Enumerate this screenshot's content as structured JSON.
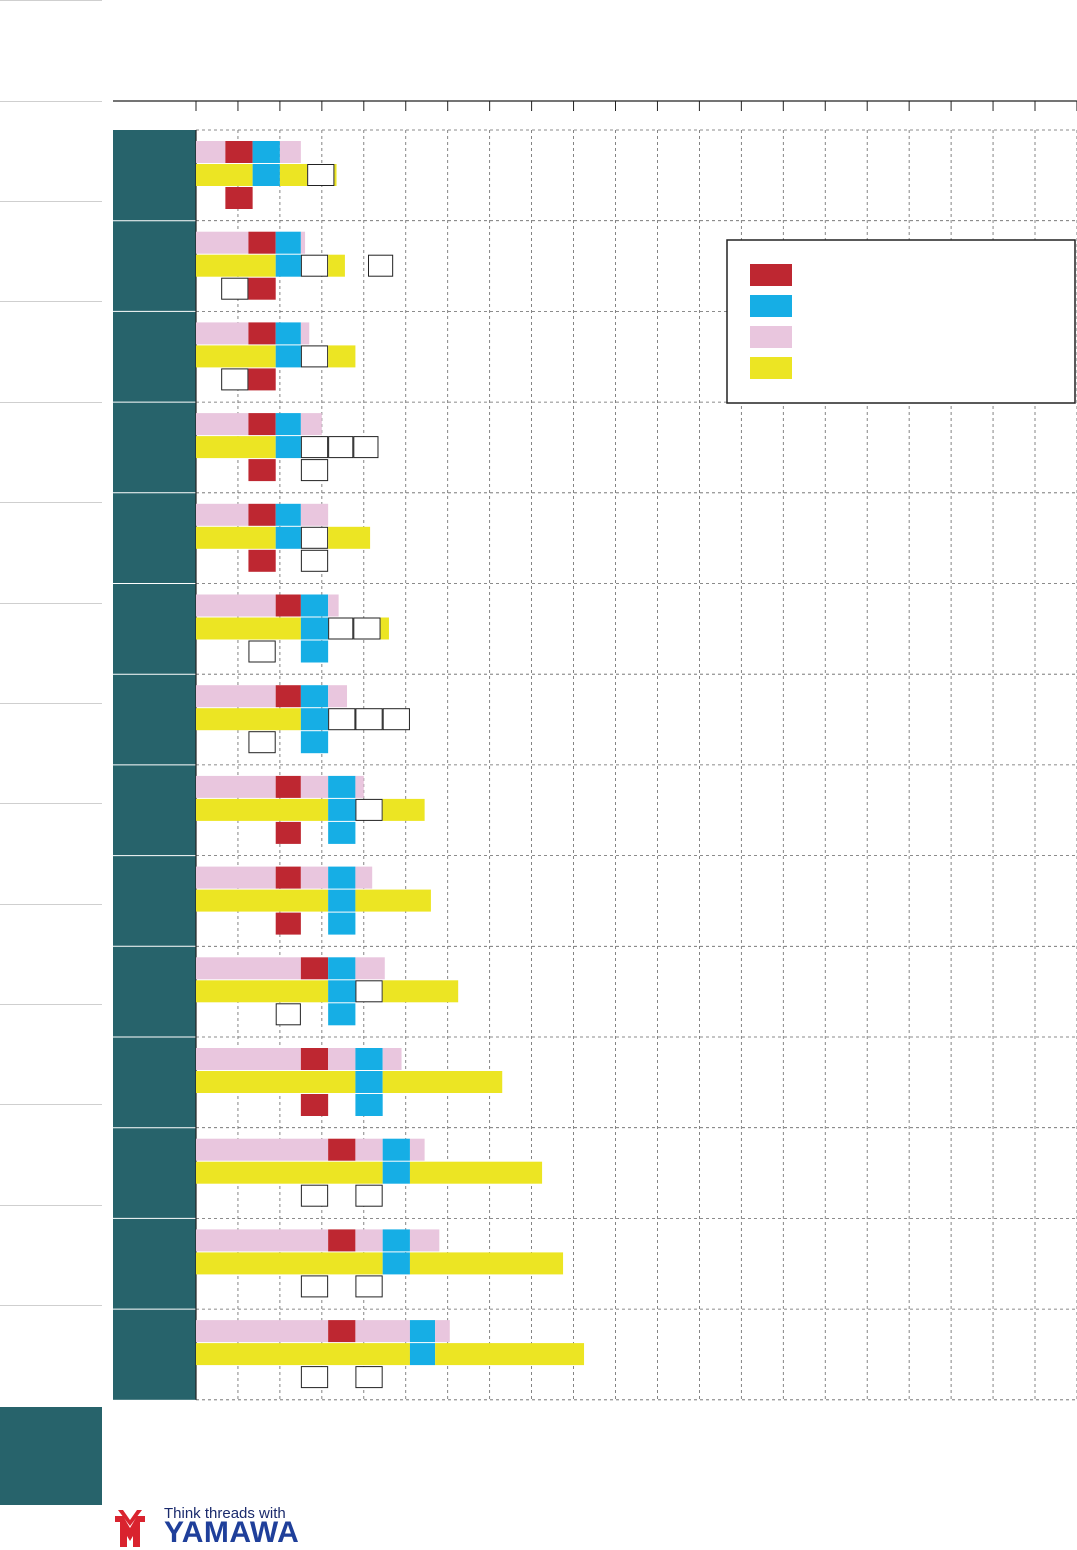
{
  "chart_data": {
    "type": "bar",
    "grid": "dashed",
    "legend_position": "top-right",
    "x_columns": 21,
    "colors": {
      "red": "#be2731",
      "blue": "#16aee5",
      "pink": "#e9c6de",
      "yellow": "#ece523",
      "row_header": "#27636b"
    },
    "legend": [
      {
        "color": "red",
        "label": ""
      },
      {
        "color": "blue",
        "label": ""
      },
      {
        "color": "pink",
        "label": ""
      },
      {
        "color": "yellow",
        "label": ""
      }
    ],
    "rows": [
      {
        "top": [
          [
            "pink",
            0,
            0.7
          ],
          [
            "red",
            0.7,
            1.35
          ],
          [
            "blue",
            1.35,
            2
          ],
          [
            "pink",
            2,
            2.5
          ]
        ],
        "middle": [
          [
            "yellow",
            0,
            1.35
          ],
          [
            "blue",
            1.35,
            2
          ],
          [
            "yellow",
            2,
            2.65
          ],
          [
            "box",
            2.65,
            3.3
          ],
          [
            "yellow",
            3.3,
            3.35
          ]
        ],
        "bottom": [
          [
            "red",
            0.7,
            1.35
          ]
        ]
      },
      {
        "top": [
          [
            "pink",
            0,
            1.25
          ],
          [
            "red",
            1.25,
            1.9
          ],
          [
            "blue",
            1.9,
            2.5
          ],
          [
            "pink",
            2.5,
            2.6
          ]
        ],
        "middle": [
          [
            "yellow",
            0,
            1.9
          ],
          [
            "blue",
            1.9,
            2.5
          ],
          [
            "box",
            2.5,
            3.15
          ],
          [
            "yellow",
            3.15,
            3.55
          ],
          [
            "box",
            4.1,
            4.7
          ]
        ],
        "bottom": [
          [
            "box",
            0.6,
            1.25
          ],
          [
            "red",
            1.25,
            1.9
          ]
        ]
      },
      {
        "top": [
          [
            "pink",
            0,
            1.25
          ],
          [
            "red",
            1.25,
            1.9
          ],
          [
            "blue",
            1.9,
            2.5
          ],
          [
            "pink",
            2.5,
            2.7
          ]
        ],
        "middle": [
          [
            "yellow",
            0,
            1.9
          ],
          [
            "blue",
            1.9,
            2.5
          ],
          [
            "box",
            2.5,
            3.15
          ],
          [
            "yellow",
            3.15,
            3.8
          ]
        ],
        "bottom": [
          [
            "box",
            0.6,
            1.25
          ],
          [
            "red",
            1.25,
            1.9
          ]
        ]
      },
      {
        "top": [
          [
            "pink",
            0,
            1.25
          ],
          [
            "red",
            1.25,
            1.9
          ],
          [
            "blue",
            1.9,
            2.5
          ],
          [
            "pink",
            2.5,
            3
          ]
        ],
        "middle": [
          [
            "yellow",
            0,
            1.9
          ],
          [
            "blue",
            1.9,
            2.5
          ],
          [
            "box",
            2.5,
            3.15
          ],
          [
            "box",
            3.15,
            3.75
          ],
          [
            "box",
            3.75,
            4.35
          ]
        ],
        "bottom": [
          [
            "red",
            1.25,
            1.9
          ],
          [
            "box",
            2.5,
            3.15
          ]
        ]
      },
      {
        "top": [
          [
            "pink",
            0,
            1.25
          ],
          [
            "red",
            1.25,
            1.9
          ],
          [
            "blue",
            1.9,
            2.5
          ],
          [
            "pink",
            2.5,
            3.15
          ]
        ],
        "middle": [
          [
            "yellow",
            0,
            1.9
          ],
          [
            "blue",
            1.9,
            2.5
          ],
          [
            "box",
            2.5,
            3.15
          ],
          [
            "yellow",
            3.15,
            4.15
          ]
        ],
        "bottom": [
          [
            "red",
            1.25,
            1.9
          ],
          [
            "box",
            2.5,
            3.15
          ]
        ]
      },
      {
        "top": [
          [
            "pink",
            0,
            1.9
          ],
          [
            "red",
            1.9,
            2.5
          ],
          [
            "blue",
            2.5,
            3.15
          ],
          [
            "pink",
            3.15,
            3.4
          ]
        ],
        "middle": [
          [
            "yellow",
            0,
            2.5
          ],
          [
            "blue",
            2.5,
            3.15
          ],
          [
            "box",
            3.15,
            3.75
          ],
          [
            "box",
            3.75,
            4.4
          ],
          [
            "yellow",
            4.4,
            4.6
          ]
        ],
        "bottom": [
          [
            "box",
            1.25,
            1.9
          ],
          [
            "blue",
            2.5,
            3.15
          ]
        ]
      },
      {
        "top": [
          [
            "pink",
            0,
            1.9
          ],
          [
            "red",
            1.9,
            2.5
          ],
          [
            "blue",
            2.5,
            3.15
          ],
          [
            "pink",
            3.15,
            3.6
          ]
        ],
        "middle": [
          [
            "yellow",
            0,
            2.5
          ],
          [
            "blue",
            2.5,
            3.15
          ],
          [
            "box",
            3.15,
            3.8
          ],
          [
            "box",
            3.8,
            4.45
          ],
          [
            "box",
            4.45,
            5.1
          ]
        ],
        "bottom": [
          [
            "box",
            1.25,
            1.9
          ],
          [
            "blue",
            2.5,
            3.15
          ]
        ]
      },
      {
        "top": [
          [
            "pink",
            0,
            1.9
          ],
          [
            "red",
            1.9,
            2.5
          ],
          [
            "pink",
            2.5,
            3.15
          ],
          [
            "blue",
            3.15,
            3.8
          ],
          [
            "pink",
            3.8,
            4
          ]
        ],
        "middle": [
          [
            "yellow",
            0,
            3.15
          ],
          [
            "blue",
            3.15,
            3.8
          ],
          [
            "box",
            3.8,
            4.45
          ],
          [
            "yellow",
            4.45,
            5.45
          ]
        ],
        "bottom": [
          [
            "red",
            1.9,
            2.5
          ],
          [
            "blue",
            3.15,
            3.8
          ]
        ]
      },
      {
        "top": [
          [
            "pink",
            0,
            1.9
          ],
          [
            "red",
            1.9,
            2.5
          ],
          [
            "pink",
            2.5,
            3.15
          ],
          [
            "blue",
            3.15,
            3.8
          ],
          [
            "pink",
            3.8,
            4.2
          ]
        ],
        "middle": [
          [
            "yellow",
            0,
            3.15
          ],
          [
            "blue",
            3.15,
            3.8
          ],
          [
            "yellow",
            3.8,
            5.6
          ]
        ],
        "bottom": [
          [
            "red",
            1.9,
            2.5
          ],
          [
            "blue",
            3.15,
            3.8
          ]
        ]
      },
      {
        "top": [
          [
            "pink",
            0,
            2.5
          ],
          [
            "red",
            2.5,
            3.15
          ],
          [
            "blue",
            3.15,
            3.8
          ],
          [
            "pink",
            3.8,
            4.5
          ]
        ],
        "middle": [
          [
            "yellow",
            0,
            3.15
          ],
          [
            "blue",
            3.15,
            3.8
          ],
          [
            "box",
            3.8,
            4.45
          ],
          [
            "yellow",
            4.45,
            6.25
          ]
        ],
        "bottom": [
          [
            "box",
            1.9,
            2.5
          ],
          [
            "blue",
            3.15,
            3.8
          ]
        ]
      },
      {
        "top": [
          [
            "pink",
            0,
            2.5
          ],
          [
            "red",
            2.5,
            3.15
          ],
          [
            "pink",
            3.15,
            3.8
          ],
          [
            "blue",
            3.8,
            4.45
          ],
          [
            "pink",
            4.45,
            4.9
          ]
        ],
        "middle": [
          [
            "yellow",
            0,
            3.8
          ],
          [
            "blue",
            3.8,
            4.45
          ],
          [
            "yellow",
            4.45,
            7.3
          ]
        ],
        "bottom": [
          [
            "red",
            2.5,
            3.15
          ],
          [
            "blue",
            3.8,
            4.45
          ]
        ]
      },
      {
        "top": [
          [
            "pink",
            0,
            3.15
          ],
          [
            "red",
            3.15,
            3.8
          ],
          [
            "pink",
            3.8,
            4.45
          ],
          [
            "blue",
            4.45,
            5.1
          ],
          [
            "pink",
            5.1,
            5.45
          ]
        ],
        "middle": [
          [
            "yellow",
            0,
            4.45
          ],
          [
            "blue",
            4.45,
            5.1
          ],
          [
            "yellow",
            5.1,
            8.25
          ]
        ],
        "bottom": [
          [
            "box",
            2.5,
            3.15
          ],
          [
            "box",
            3.8,
            4.45
          ]
        ]
      },
      {
        "top": [
          [
            "pink",
            0,
            3.15
          ],
          [
            "red",
            3.15,
            3.8
          ],
          [
            "pink",
            3.8,
            4.45
          ],
          [
            "blue",
            4.45,
            5.1
          ],
          [
            "pink",
            5.1,
            5.8
          ]
        ],
        "middle": [
          [
            "yellow",
            0,
            4.45
          ],
          [
            "blue",
            4.45,
            5.1
          ],
          [
            "yellow",
            5.1,
            8.75
          ]
        ],
        "bottom": [
          [
            "box",
            2.5,
            3.15
          ],
          [
            "box",
            3.8,
            4.45
          ]
        ]
      },
      {
        "top": [
          [
            "pink",
            0,
            3.15
          ],
          [
            "red",
            3.15,
            3.8
          ],
          [
            "pink",
            3.8,
            5.1
          ],
          [
            "blue",
            5.1,
            5.7
          ],
          [
            "pink",
            5.7,
            6.05
          ]
        ],
        "middle": [
          [
            "yellow",
            0,
            5.1
          ],
          [
            "blue",
            5.1,
            5.7
          ],
          [
            "yellow",
            5.7,
            9.25
          ]
        ],
        "bottom": [
          [
            "box",
            2.5,
            3.15
          ],
          [
            "box",
            3.8,
            4.45
          ]
        ]
      }
    ]
  },
  "logo": {
    "tagline": "Think threads with",
    "brand": "YAMAWA",
    "colors": {
      "red": "#d9232e",
      "navy": "#1f3f9a"
    }
  }
}
